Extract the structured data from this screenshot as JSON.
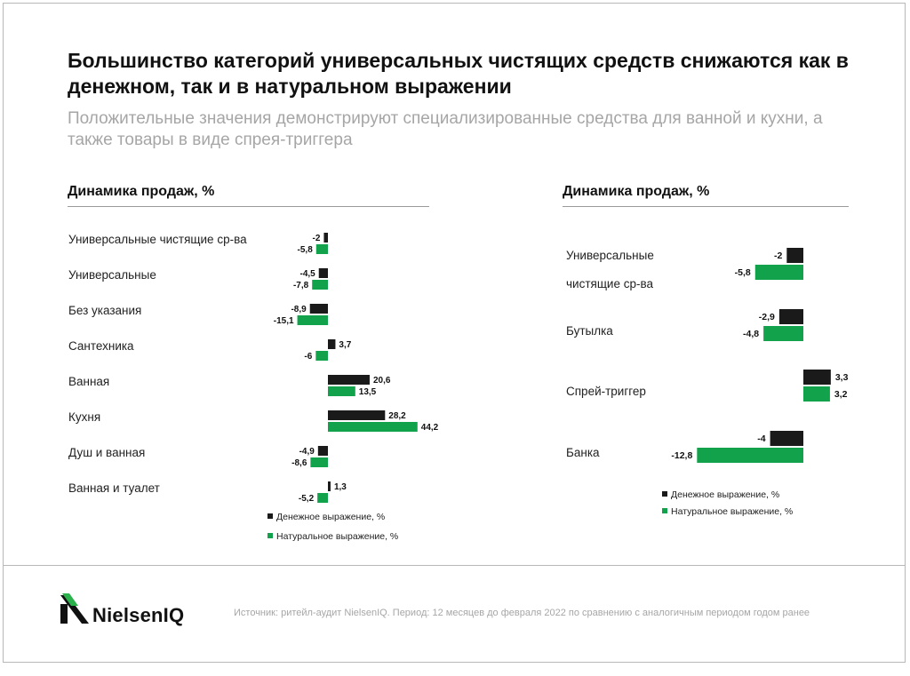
{
  "title": "Большинство категорий универсальных чистящих средств снижаются как в денежном, так и в натуральном выражении",
  "subtitle": "Положительные значения демонстрируют специализированные средства для ванной и кухни, а также товары в виде спрея-триггера",
  "colors": {
    "value_series": "#1a1a1a",
    "volume_series": "#12a24b",
    "rule": "#9a9a9a"
  },
  "chart_data": [
    {
      "type": "bar",
      "orientation": "horizontal",
      "title": "Динамика продаж, %",
      "categories": [
        "Универсальные чистящие ср-ва",
        "Универсальные",
        "Без указания",
        "Сантехника",
        "Ванная",
        "Кухня",
        "Душ и ванная",
        "Ванная и туалет"
      ],
      "series": [
        {
          "name": "Денежное выражение, %",
          "color": "#1a1a1a",
          "values": [
            -2,
            -4.5,
            -8.9,
            3.7,
            20.6,
            28.2,
            -4.9,
            1.3
          ],
          "labels": [
            "-2",
            "-4,5",
            "-8,9",
            "3,7",
            "20,6",
            "28,2",
            "-4,9",
            "1,3"
          ]
        },
        {
          "name": "Натуральное выражение, %",
          "color": "#12a24b",
          "values": [
            -5.8,
            -7.8,
            -15.1,
            -6,
            13.5,
            44.2,
            -8.6,
            -5.2
          ],
          "labels": [
            "-5,8",
            "-7,8",
            "-15,1",
            "-6",
            "13,5",
            "44,2",
            "-8,6",
            "-5,2"
          ]
        }
      ],
      "legend": "bottom"
    },
    {
      "type": "bar",
      "orientation": "horizontal",
      "title": "Динамика продаж, %",
      "categories": [
        [
          "Универсальные",
          "чистящие ср-ва"
        ],
        [
          "Бутылка"
        ],
        [
          "Спрей-триггер"
        ],
        [
          "Банка"
        ]
      ],
      "series": [
        {
          "name": "Денежное выражение, %",
          "color": "#1a1a1a",
          "values": [
            -2,
            -2.9,
            3.3,
            -4
          ],
          "labels": [
            "-2",
            "-2,9",
            "3,3",
            "-4"
          ]
        },
        {
          "name": "Натуральное выражение, %",
          "color": "#12a24b",
          "values": [
            -5.8,
            -4.8,
            3.2,
            -12.8
          ],
          "labels": [
            "-5,8",
            "-4,8",
            "3,2",
            "-12,8"
          ]
        }
      ],
      "legend": "bottom"
    }
  ],
  "footer": {
    "brand": "NielsenIQ",
    "source": "Источник: ритейл-аудит NielsenIQ. Период: 12 месяцев до февраля 2022 по сравнению с аналогичным периодом годом ранее"
  }
}
